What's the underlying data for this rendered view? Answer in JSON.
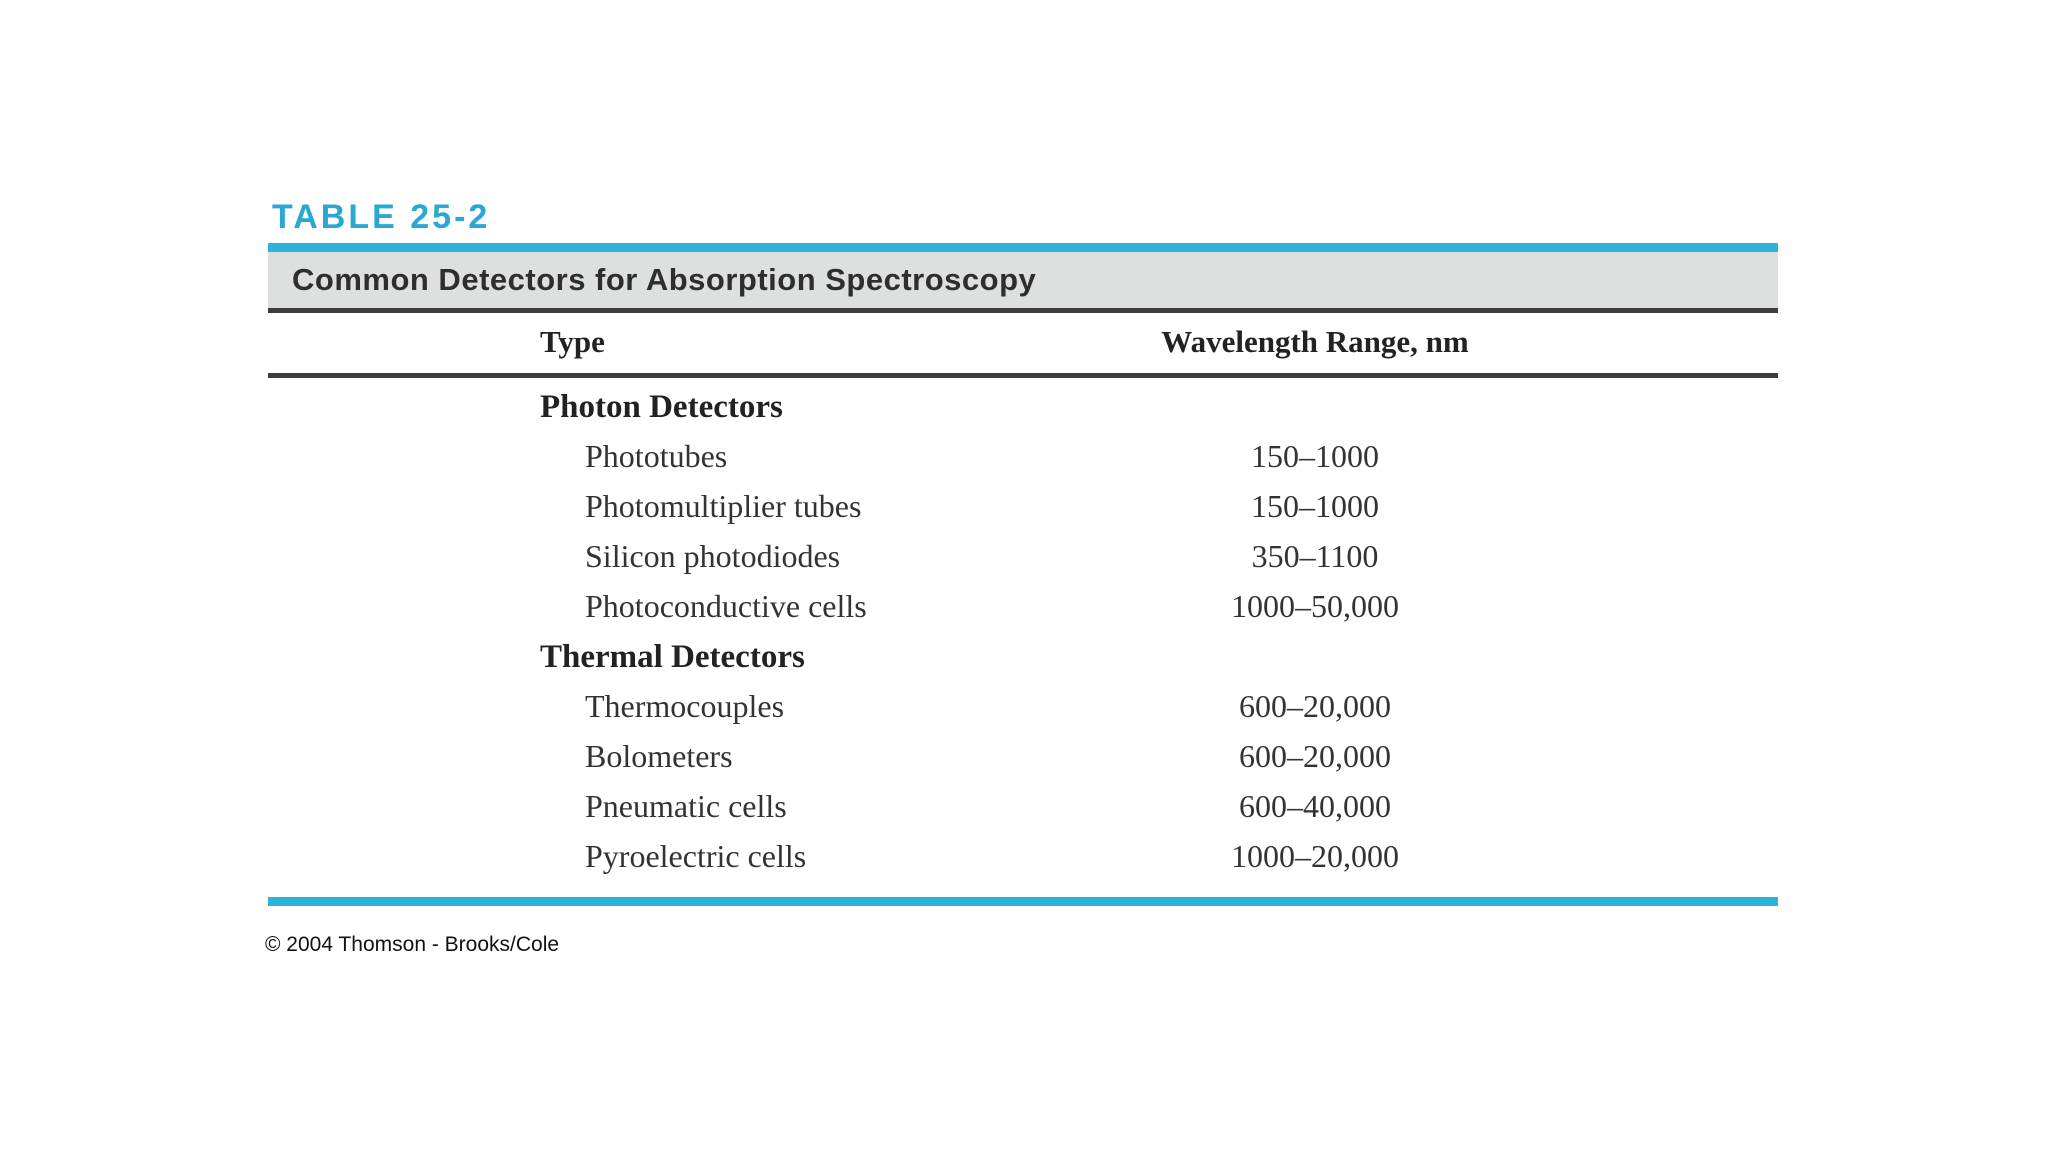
{
  "page": {
    "table_label": "TABLE 25-2",
    "copyright": "© 2004 Thomson - Brooks/Cole"
  },
  "table": {
    "caption": "Common Detectors for Absorption Spectroscopy",
    "columns": [
      "Type",
      "Wavelength Range, nm"
    ],
    "rows": [
      {
        "type": "Photon Detectors",
        "range": ""
      },
      {
        "type": "Phototubes",
        "range": "150–1000"
      },
      {
        "type": "Photomultiplier tubes",
        "range": "150–1000"
      },
      {
        "type": "Silicon photodiodes",
        "range": "350–1100"
      },
      {
        "type": "Photoconductive cells",
        "range": "1000–50,000"
      },
      {
        "type": "Thermal Detectors",
        "range": ""
      },
      {
        "type": "Thermocouples",
        "range": "600–20,000"
      },
      {
        "type": "Bolometers",
        "range": "600–20,000"
      },
      {
        "type": "Pneumatic cells",
        "range": "600–40,000"
      },
      {
        "type": "Pyroelectric cells",
        "range": "1000–20,000"
      }
    ]
  },
  "colors": {
    "accent_cyan": "#2bb3da",
    "title_cyan": "#2aa7d2",
    "caption_bar_gray": "#dedfdf",
    "rule_dark": "#3d3d3d",
    "text_dark": "#2e2e2e"
  }
}
